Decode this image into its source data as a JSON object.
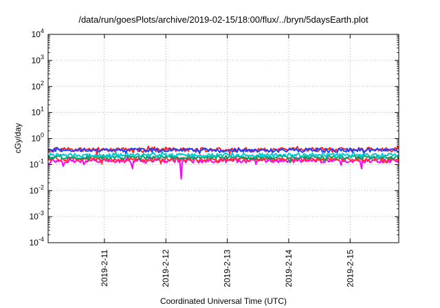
{
  "chart_data": {
    "type": "line",
    "title": "/data/run/goesPlots/archive/2019-02-15/18:00/flux/../bryn/5daysEarth.plot",
    "xlabel": "Coordinated Universal Time (UTC)",
    "ylabel": "cGy/day",
    "yscale": "log",
    "ylim": [
      0.0001,
      10000
    ],
    "xlim": [
      "2019-02-10T02:00",
      "2019-02-15T19:00"
    ],
    "grid": true,
    "legend": "none",
    "y_ticks": [
      {
        "value": 0.0001,
        "base": "10",
        "exp": "-4"
      },
      {
        "value": 0.001,
        "base": "10",
        "exp": "-3"
      },
      {
        "value": 0.01,
        "base": "10",
        "exp": "-2"
      },
      {
        "value": 0.1,
        "base": "10",
        "exp": "-1"
      },
      {
        "value": 1,
        "base": "10",
        "exp": "0"
      },
      {
        "value": 10,
        "base": "10",
        "exp": "1"
      },
      {
        "value": 100,
        "base": "10",
        "exp": "2"
      },
      {
        "value": 1000,
        "base": "10",
        "exp": "3"
      },
      {
        "value": 10000,
        "base": "10",
        "exp": "4"
      }
    ],
    "x_ticks": [
      {
        "value": "2019-02-11T00:00",
        "label": "2019-2-11"
      },
      {
        "value": "2019-02-12T00:00",
        "label": "2019-2-12"
      },
      {
        "value": "2019-02-13T00:00",
        "label": "2019-2-13"
      },
      {
        "value": "2019-02-14T00:00",
        "label": "2019-2-14"
      },
      {
        "value": "2019-02-15T00:00",
        "label": "2019-2-15"
      }
    ],
    "series": [
      {
        "color": "#ff00ff",
        "level": 0.14,
        "spikes": [
          {
            "t": "2019-02-10T16:00",
            "y": 0.1
          },
          {
            "t": "2019-02-11T11:00",
            "y": 0.07
          },
          {
            "t": "2019-02-12T06:00",
            "y": 0.028
          },
          {
            "t": "2019-02-15T04:30",
            "y": 0.07
          }
        ]
      },
      {
        "color": "#ff3030",
        "level": 0.16,
        "spikes": []
      },
      {
        "color": "#00a060",
        "level": 0.19,
        "spikes": []
      },
      {
        "color": "#00c8d0",
        "level": 0.23,
        "spikes": []
      },
      {
        "color": "#ff2020",
        "level": 0.38,
        "spikes": []
      },
      {
        "color": "#2040ff",
        "level": 0.36,
        "spikes": []
      }
    ]
  }
}
